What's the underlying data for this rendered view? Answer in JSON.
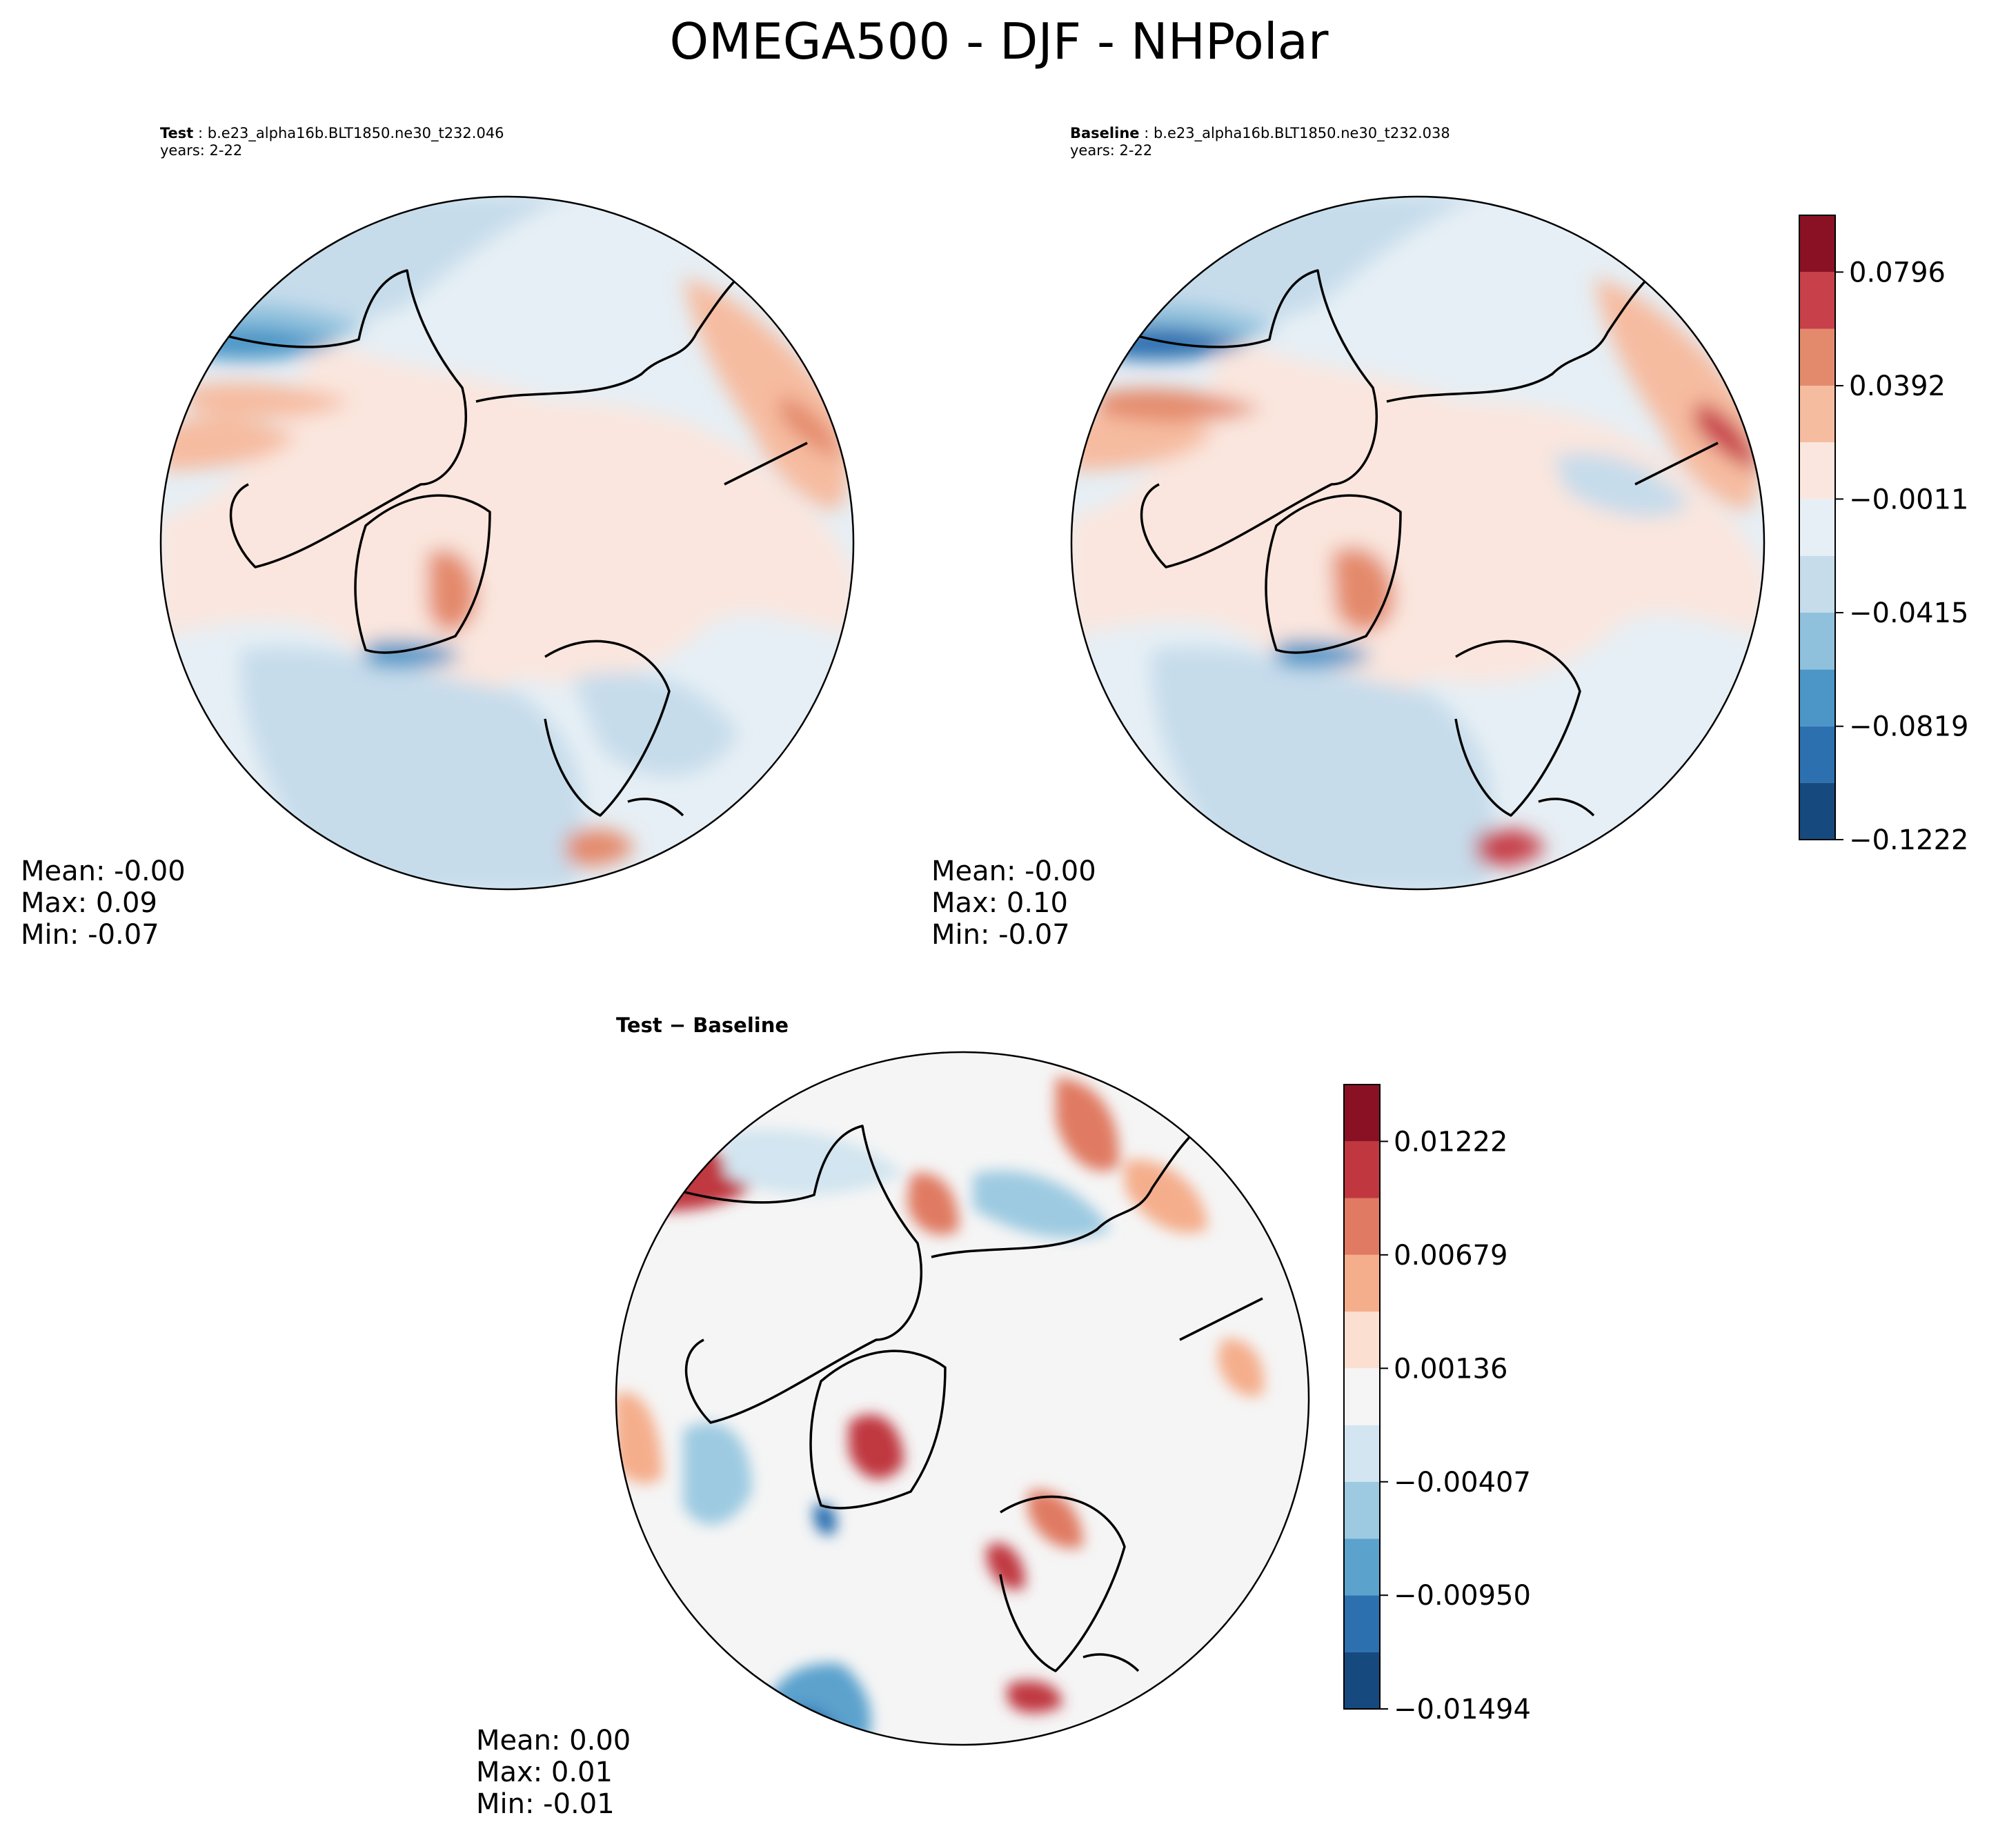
{
  "figure": {
    "title": "OMEGA500 - DJF - NHPolar"
  },
  "panels": {
    "test": {
      "label": "Test",
      "case": "b.e23_alpha16b.BLT1850.ne30_t232.046",
      "years": "years: 2-22",
      "stats": {
        "mean": "Mean: -0.00",
        "max": "Max:  0.09",
        "min": "Min: -0.07"
      }
    },
    "baseline": {
      "label": "Baseline",
      "case": "b.e23_alpha16b.BLT1850.ne30_t232.038",
      "years": "years: 2-22",
      "stats": {
        "mean": "Mean: -0.00",
        "max": "Max:  0.10",
        "min": "Min: -0.07"
      }
    },
    "diff": {
      "label": "Test − Baseline",
      "stats": {
        "mean": "Mean:  0.00",
        "max": "Max:  0.01",
        "min": "Min: -0.01"
      }
    }
  },
  "chart_data": [
    {
      "type": "heatmap",
      "name": "Test",
      "projection": "north-polar-stereographic",
      "title": "Test : b.e23_alpha16b.BLT1850.ne30_t232.046",
      "subtitle": "years: 2-22",
      "stats": {
        "mean": -0.0,
        "max": 0.09,
        "min": -0.07
      }
    },
    {
      "type": "heatmap",
      "name": "Baseline",
      "projection": "north-polar-stereographic",
      "title": "Baseline : b.e23_alpha16b.BLT1850.ne30_t232.038",
      "subtitle": "years: 2-22",
      "stats": {
        "mean": -0.0,
        "max": 0.1,
        "min": -0.07
      },
      "colorbar": {
        "levels": [
          -0.1222,
          -0.102,
          -0.0819,
          -0.0617,
          -0.0415,
          -0.0213,
          -0.0011,
          0.0191,
          0.0392,
          0.0594,
          0.0796,
          0.0998
        ],
        "tick_values": [
          -0.1222,
          -0.0819,
          -0.0415,
          -0.0011,
          0.0392,
          0.0796
        ],
        "tick_labels": [
          "−0.1222",
          "−0.0819",
          "−0.0415",
          "−0.0011",
          "0.0392",
          "0.0796"
        ],
        "colors": [
          "#164a7f",
          "#2c70b0",
          "#4b96c7",
          "#8fc1dd",
          "#c6dceb",
          "#e6eff5",
          "#fae6de",
          "#f6bca0",
          "#e48a6c",
          "#c7404a",
          "#8a1124"
        ]
      }
    },
    {
      "type": "heatmap",
      "name": "Test - Baseline",
      "projection": "north-polar-stereographic",
      "title": "Test − Baseline",
      "stats": {
        "mean": 0.0,
        "max": 0.01,
        "min": -0.01
      },
      "colorbar": {
        "levels": [
          -0.01494,
          -0.01222,
          -0.0095,
          -0.00679,
          -0.00407,
          -0.00136,
          0.00136,
          0.00407,
          0.00679,
          0.0095,
          0.01222,
          0.01494
        ],
        "tick_values": [
          -0.01494,
          -0.0095,
          -0.00407,
          0.00136,
          0.00679,
          0.01222
        ],
        "tick_labels": [
          "−0.01494",
          "−0.00950",
          "−0.00407",
          "0.00136",
          "0.00679",
          "0.01222"
        ],
        "colors": [
          "#164a7f",
          "#2c70b0",
          "#5ba2cd",
          "#9dcae1",
          "#d2e5f0",
          "#f5f5f5",
          "#fbe0d1",
          "#f5ae8c",
          "#e07a62",
          "#c0373f",
          "#8a1124"
        ]
      }
    }
  ]
}
